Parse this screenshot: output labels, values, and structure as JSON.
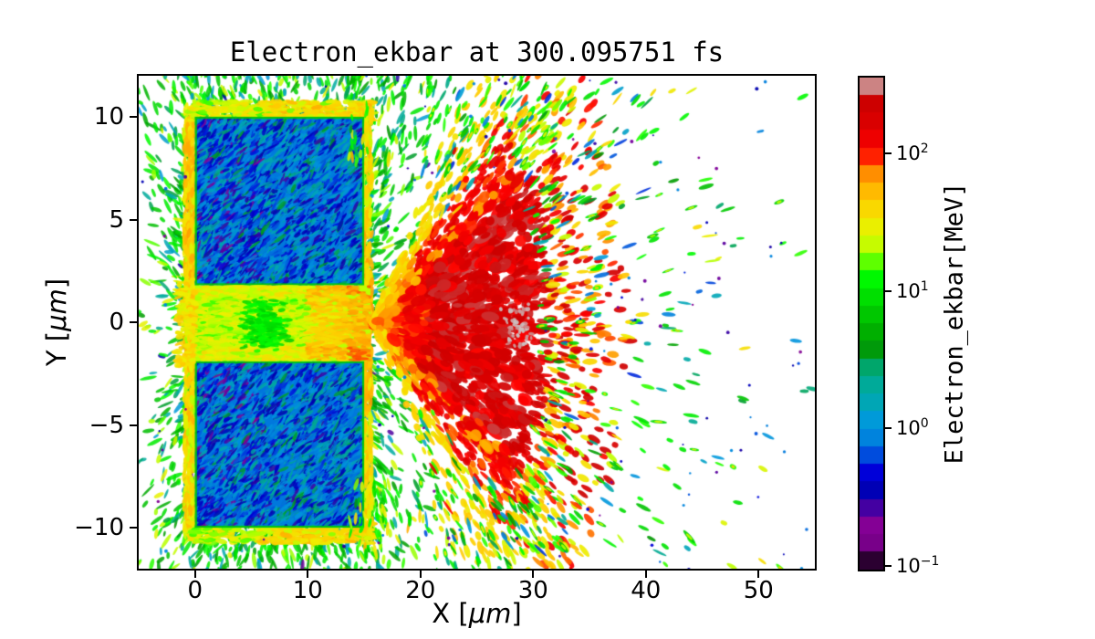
{
  "figure": {
    "background": "#ffffff",
    "frame_color": "#000000",
    "text_color": "#000000"
  },
  "chart_data": {
    "type": "heatmap",
    "title": "Electron_ekbar at 300.095751 fs",
    "species": "Electron",
    "quantity": "ekbar",
    "time_fs": 300.095751,
    "xlabel": "X [μm]",
    "ylabel": "Y [μm]",
    "xlabel_parts": {
      "prefix": "X [",
      "math": "μm",
      "suffix": "]"
    },
    "ylabel_parts": {
      "prefix": "Y [",
      "math": "μm",
      "suffix": "]"
    },
    "xlim": [
      -5,
      55
    ],
    "ylim": [
      -12,
      12
    ],
    "grid": false,
    "x_ticks": [
      {
        "v": 0,
        "label": "0"
      },
      {
        "v": 10,
        "label": "10"
      },
      {
        "v": 20,
        "label": "20"
      },
      {
        "v": 30,
        "label": "30"
      },
      {
        "v": 40,
        "label": "40"
      },
      {
        "v": 50,
        "label": "50"
      }
    ],
    "y_ticks": [
      {
        "v": 10,
        "label": "10"
      },
      {
        "v": 5,
        "label": "5"
      },
      {
        "v": 0,
        "label": "0"
      },
      {
        "v": -5,
        "label": "−5"
      },
      {
        "v": -10,
        "label": "−10"
      }
    ],
    "colorbar": {
      "label": "Electron_ekbar[MeV]",
      "unit": "MeV",
      "scale": "log",
      "vmin": 0.094,
      "vmax": 356,
      "ticks": [
        {
          "value": 100,
          "base": "10",
          "exp": "2"
        },
        {
          "value": 10,
          "base": "10",
          "exp": "1"
        },
        {
          "value": 1,
          "base": "10",
          "exp": "0"
        },
        {
          "value": 0.1,
          "base": "10",
          "exp": "−1"
        }
      ],
      "colormap": "nipy_spectral",
      "n_bands": 28,
      "stops": [
        [
          0.0,
          0,
          0,
          0
        ],
        [
          0.05,
          119,
          0,
          136
        ],
        [
          0.1,
          136,
          0,
          153
        ],
        [
          0.15,
          0,
          0,
          170
        ],
        [
          0.2,
          0,
          0,
          221
        ],
        [
          0.25,
          0,
          119,
          221
        ],
        [
          0.3,
          0,
          153,
          221
        ],
        [
          0.35,
          0,
          170,
          170
        ],
        [
          0.4,
          0,
          170,
          136
        ],
        [
          0.45,
          0,
          153,
          0
        ],
        [
          0.5,
          0,
          187,
          0
        ],
        [
          0.55,
          0,
          221,
          0
        ],
        [
          0.6,
          0,
          255,
          0
        ],
        [
          0.65,
          187,
          255,
          0
        ],
        [
          0.7,
          238,
          238,
          0
        ],
        [
          0.75,
          255,
          204,
          0
        ],
        [
          0.8,
          255,
          153,
          0
        ],
        [
          0.85,
          255,
          0,
          0
        ],
        [
          0.9,
          221,
          0,
          0
        ],
        [
          0.95,
          204,
          0,
          0
        ],
        [
          1.0,
          204,
          204,
          204
        ]
      ]
    },
    "features": {
      "target_blocks_um": [
        {
          "x": [
            0,
            15
          ],
          "y": [
            1.8,
            10
          ]
        },
        {
          "x": [
            0,
            15
          ],
          "y": [
            -10,
            -1.9
          ]
        }
      ],
      "slit_gap_um": {
        "x": [
          0,
          15
        ],
        "y": [
          -1.9,
          1.8
        ]
      },
      "regions": [
        {
          "name": "target-interior",
          "approx_mev": [
            0.3,
            2
          ],
          "color_appearance": "blue"
        },
        {
          "name": "target-surface-sheath",
          "approx_mev": [
            15,
            60
          ],
          "color_appearance": "yellow-orange"
        },
        {
          "name": "halo-streaks-around-target",
          "approx_mev": [
            2,
            15
          ],
          "color_appearance": "green-teal"
        },
        {
          "name": "slit-channel",
          "approx_mev": [
            10,
            40
          ],
          "color_appearance": "yellow with green pocket"
        },
        {
          "name": "jet-core",
          "center_um": [
            25,
            0
          ],
          "approx_mev": [
            80,
            250
          ],
          "color_appearance": "red"
        },
        {
          "name": "jet-max-cluster",
          "center_um": [
            29,
            0
          ],
          "approx_mev": [
            300,
            356
          ],
          "color_appearance": "gray"
        },
        {
          "name": "fan-streaks",
          "approx_mev": [
            10,
            90
          ],
          "color_appearance": "orange-yellow-green radial streaks"
        },
        {
          "name": "far-field-sparse",
          "approx_mev": [
            0.15,
            15
          ],
          "color_appearance": "green-cyan-blue-purple specks"
        }
      ]
    }
  }
}
